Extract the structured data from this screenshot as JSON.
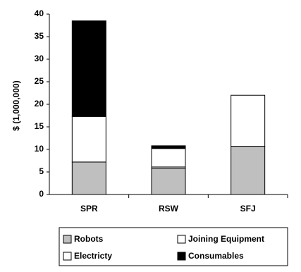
{
  "chart_data": {
    "type": "bar",
    "stacked": true,
    "categories": [
      "SPR",
      "RSW",
      "SFJ"
    ],
    "series": [
      {
        "name": "Robots",
        "color": "#bfbfbf",
        "values": [
          7.2,
          5.8,
          10.7
        ]
      },
      {
        "name": "Joining Equipment",
        "color": "#ffffff",
        "values": [
          0,
          0.3,
          0
        ]
      },
      {
        "name": "Electricty",
        "color": "#ffffff",
        "values": [
          10.1,
          4.1,
          11.3
        ]
      },
      {
        "name": "Consumables",
        "color": "#000000",
        "values": [
          21.2,
          0.6,
          0
        ]
      }
    ],
    "title": "",
    "xlabel": "",
    "ylabel": "$ (1,000,000)",
    "ylim": [
      0,
      40
    ],
    "yticks": [
      0,
      5,
      10,
      15,
      20,
      25,
      30,
      35,
      40
    ],
    "grid": false,
    "legend_position": "bottom",
    "legend_order": [
      "Robots",
      "Joining Equipment",
      "Electricty",
      "Consumables"
    ]
  }
}
